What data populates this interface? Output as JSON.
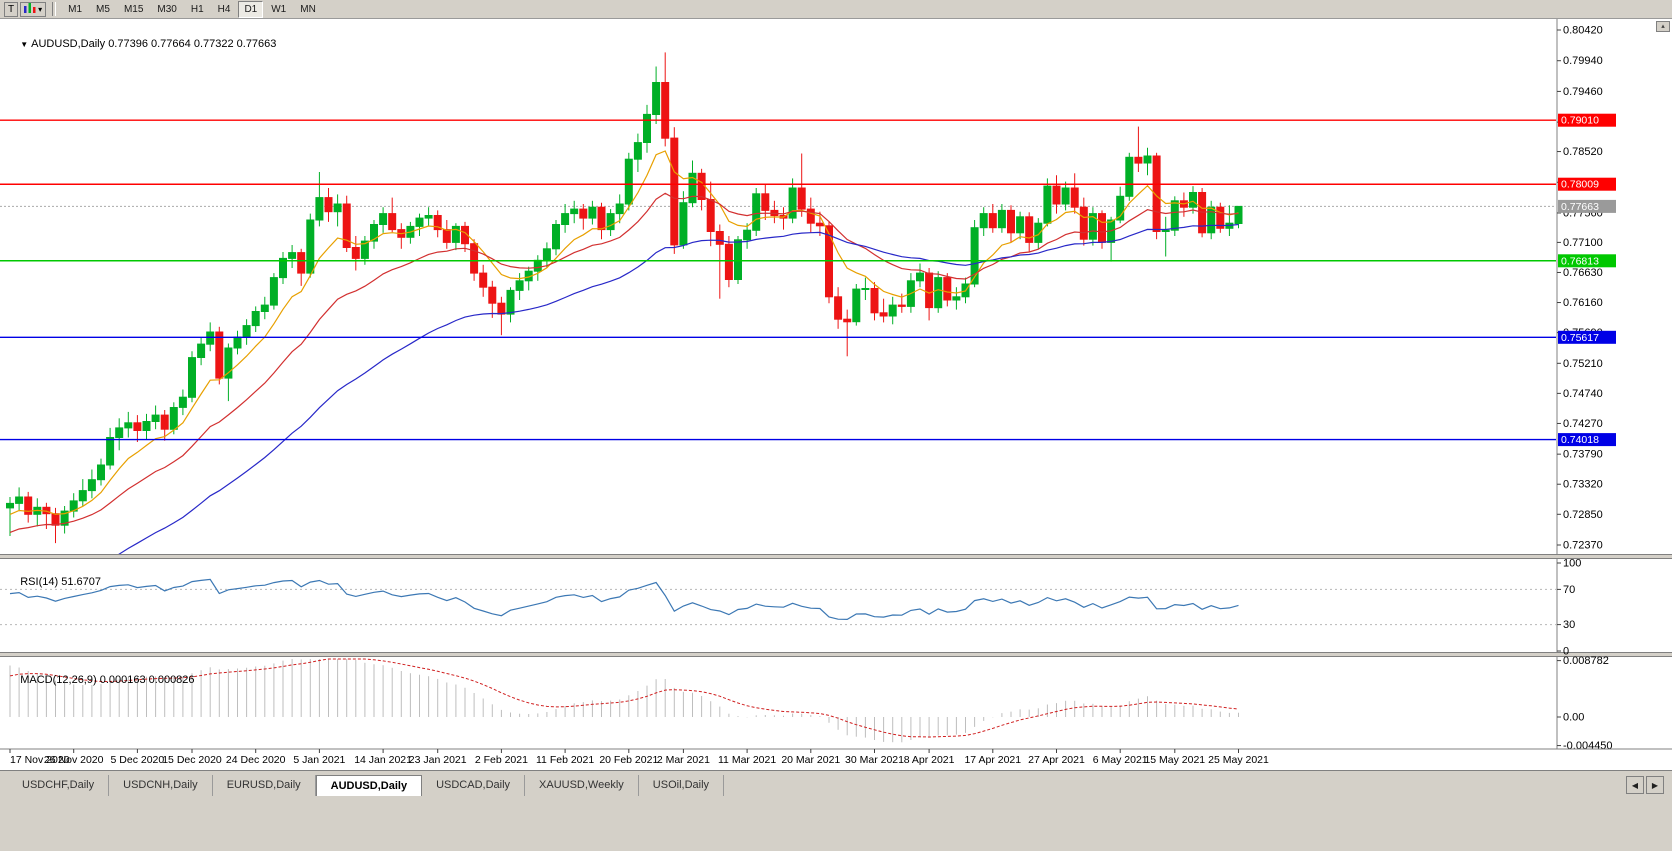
{
  "toolbar": {
    "tool_button": "T",
    "timeframes": [
      "M1",
      "M5",
      "M15",
      "M30",
      "H1",
      "H4",
      "D1",
      "W1",
      "MN"
    ],
    "active_timeframe": "D1"
  },
  "chart_data": {
    "type": "candlestick",
    "symbol_period": "AUDUSD,Daily",
    "ohlc_text": "0.77396 0.77664 0.77322 0.77663",
    "open": "0.77396",
    "high": "0.77664",
    "low": "0.77322",
    "close": "0.77663",
    "price_axis_max": 0.8042,
    "price_axis_min": 0.7237,
    "price_ticks": [
      "0.80420",
      "0.79940",
      "0.79460",
      "0.78980",
      "0.78520",
      "0.78040",
      "0.77560",
      "0.77100",
      "0.76630",
      "0.76160",
      "0.75690",
      "0.75210",
      "0.74740",
      "0.74270",
      "0.73790",
      "0.73320",
      "0.72850",
      "0.72370"
    ],
    "hlines": [
      {
        "price": 0.7901,
        "label": "0.79010",
        "color": "#FF0000"
      },
      {
        "price": 0.78009,
        "label": "0.78009",
        "color": "#FF0000"
      },
      {
        "price": 0.76813,
        "label": "0.76813",
        "color": "#00C800"
      },
      {
        "price": 0.75617,
        "label": "0.75617",
        "color": "#0000E6"
      },
      {
        "price": 0.74018,
        "label": "0.74018",
        "color": "#0000E6"
      }
    ],
    "current_price": {
      "price": 0.77663,
      "label": "0.77663"
    },
    "dates": [
      "17 Nov 2020",
      "26 Nov 2020",
      "5 Dec 2020",
      "15 Dec 2020",
      "24 Dec 2020",
      "5 Jan 2021",
      "14 Jan 2021",
      "23 Jan 2021",
      "2 Feb 2021",
      "11 Feb 2021",
      "20 Feb 2021",
      "2 Mar 2021",
      "11 Mar 2021",
      "20 Mar 2021",
      "30 Mar 2021",
      "8 Apr 2021",
      "17 Apr 2021",
      "27 Apr 2021",
      "6 May 2021",
      "15 May 2021",
      "25 May 2021"
    ],
    "indicators": {
      "rsi": {
        "name": "RSI(14)",
        "value": "51.6707",
        "axis_labels": [
          "100",
          "70",
          "30",
          "0"
        ],
        "dashed_levels": [
          70,
          30
        ]
      },
      "macd": {
        "name": "MACD(12,26,9)",
        "values": "0.000163 0.000826",
        "axis_labels": [
          "0.008782",
          "0.00",
          "-0.004450"
        ]
      }
    },
    "candles": [
      [
        0.7295,
        0.7312,
        0.7251,
        0.7302
      ],
      [
        0.7302,
        0.7327,
        0.729,
        0.7312
      ],
      [
        0.7312,
        0.732,
        0.7272,
        0.7285
      ],
      [
        0.7285,
        0.731,
        0.7266,
        0.7296
      ],
      [
        0.7296,
        0.7303,
        0.7262,
        0.7286
      ],
      [
        0.7286,
        0.7295,
        0.724,
        0.7268
      ],
      [
        0.7268,
        0.7298,
        0.7255,
        0.729
      ],
      [
        0.729,
        0.7318,
        0.728,
        0.7306
      ],
      [
        0.7306,
        0.734,
        0.7298,
        0.7322
      ],
      [
        0.7322,
        0.7355,
        0.731,
        0.7339
      ],
      [
        0.7339,
        0.7372,
        0.733,
        0.7362
      ],
      [
        0.7362,
        0.742,
        0.7355,
        0.7405
      ],
      [
        0.7405,
        0.7435,
        0.7385,
        0.742
      ],
      [
        0.742,
        0.7445,
        0.7405,
        0.7428
      ],
      [
        0.7428,
        0.744,
        0.7398,
        0.7416
      ],
      [
        0.7416,
        0.7442,
        0.7402,
        0.743
      ],
      [
        0.743,
        0.7455,
        0.7418,
        0.744
      ],
      [
        0.744,
        0.7448,
        0.74,
        0.7418
      ],
      [
        0.7418,
        0.746,
        0.741,
        0.7452
      ],
      [
        0.7452,
        0.748,
        0.744,
        0.7468
      ],
      [
        0.7468,
        0.754,
        0.746,
        0.753
      ],
      [
        0.753,
        0.7562,
        0.7518,
        0.7551
      ],
      [
        0.7551,
        0.7585,
        0.754,
        0.757
      ],
      [
        0.757,
        0.7578,
        0.7488,
        0.7498
      ],
      [
        0.7498,
        0.7552,
        0.7462,
        0.7545
      ],
      [
        0.7545,
        0.7572,
        0.7535,
        0.7562
      ],
      [
        0.7562,
        0.759,
        0.755,
        0.758
      ],
      [
        0.758,
        0.761,
        0.757,
        0.7602
      ],
      [
        0.7602,
        0.7625,
        0.759,
        0.7612
      ],
      [
        0.7612,
        0.7662,
        0.7605,
        0.7655
      ],
      [
        0.7655,
        0.7695,
        0.7645,
        0.7685
      ],
      [
        0.7685,
        0.7706,
        0.767,
        0.7694
      ],
      [
        0.7694,
        0.77,
        0.7642,
        0.7662
      ],
      [
        0.7662,
        0.7755,
        0.7655,
        0.7745
      ],
      [
        0.7745,
        0.782,
        0.7735,
        0.778
      ],
      [
        0.778,
        0.7795,
        0.7742,
        0.7758
      ],
      [
        0.7758,
        0.7785,
        0.7735,
        0.777
      ],
      [
        0.777,
        0.7783,
        0.7695,
        0.7702
      ],
      [
        0.7702,
        0.772,
        0.7666,
        0.7685
      ],
      [
        0.7685,
        0.772,
        0.7675,
        0.7712
      ],
      [
        0.7712,
        0.7745,
        0.77,
        0.7738
      ],
      [
        0.7738,
        0.7765,
        0.7725,
        0.7755
      ],
      [
        0.7755,
        0.778,
        0.7726,
        0.773
      ],
      [
        0.773,
        0.774,
        0.77,
        0.7718
      ],
      [
        0.7718,
        0.7742,
        0.7708,
        0.7735
      ],
      [
        0.7735,
        0.7755,
        0.772,
        0.7748
      ],
      [
        0.7748,
        0.7765,
        0.7735,
        0.7752
      ],
      [
        0.7752,
        0.776,
        0.7718,
        0.773
      ],
      [
        0.773,
        0.7745,
        0.77,
        0.771
      ],
      [
        0.771,
        0.774,
        0.7698,
        0.7735
      ],
      [
        0.7735,
        0.7742,
        0.7695,
        0.7708
      ],
      [
        0.7708,
        0.7715,
        0.765,
        0.7662
      ],
      [
        0.7662,
        0.7675,
        0.7625,
        0.764
      ],
      [
        0.764,
        0.765,
        0.7592,
        0.7615
      ],
      [
        0.7615,
        0.7625,
        0.7565,
        0.7598
      ],
      [
        0.7598,
        0.764,
        0.7585,
        0.7635
      ],
      [
        0.7635,
        0.7662,
        0.762,
        0.765
      ],
      [
        0.765,
        0.7672,
        0.7635,
        0.7665
      ],
      [
        0.7665,
        0.769,
        0.765,
        0.7682
      ],
      [
        0.7682,
        0.771,
        0.767,
        0.77
      ],
      [
        0.77,
        0.7745,
        0.769,
        0.7738
      ],
      [
        0.7738,
        0.777,
        0.7725,
        0.7755
      ],
      [
        0.7755,
        0.7775,
        0.774,
        0.7762
      ],
      [
        0.7762,
        0.777,
        0.773,
        0.7748
      ],
      [
        0.7748,
        0.7775,
        0.7738,
        0.7765
      ],
      [
        0.7765,
        0.7772,
        0.7715,
        0.773
      ],
      [
        0.773,
        0.7762,
        0.772,
        0.7755
      ],
      [
        0.7755,
        0.7785,
        0.774,
        0.777
      ],
      [
        0.777,
        0.785,
        0.776,
        0.784
      ],
      [
        0.784,
        0.788,
        0.782,
        0.7866
      ],
      [
        0.7866,
        0.7925,
        0.785,
        0.791
      ],
      [
        0.791,
        0.7985,
        0.7895,
        0.796
      ],
      [
        0.796,
        0.8007,
        0.786,
        0.7873
      ],
      [
        0.7873,
        0.789,
        0.7692,
        0.7706
      ],
      [
        0.7706,
        0.779,
        0.77,
        0.7772
      ],
      [
        0.7772,
        0.7838,
        0.7765,
        0.7818
      ],
      [
        0.7818,
        0.7825,
        0.776,
        0.7777
      ],
      [
        0.7777,
        0.7805,
        0.7704,
        0.7727
      ],
      [
        0.7727,
        0.7738,
        0.7622,
        0.7707
      ],
      [
        0.7707,
        0.772,
        0.764,
        0.7652
      ],
      [
        0.7652,
        0.772,
        0.7645,
        0.7714
      ],
      [
        0.7714,
        0.774,
        0.77,
        0.7729
      ],
      [
        0.7729,
        0.7795,
        0.772,
        0.7786
      ],
      [
        0.7786,
        0.78,
        0.7745,
        0.776
      ],
      [
        0.776,
        0.7775,
        0.774,
        0.7752
      ],
      [
        0.7752,
        0.7765,
        0.773,
        0.7748
      ],
      [
        0.7748,
        0.781,
        0.774,
        0.7795
      ],
      [
        0.7795,
        0.7849,
        0.775,
        0.7762
      ],
      [
        0.7762,
        0.778,
        0.7725,
        0.774
      ],
      [
        0.774,
        0.7758,
        0.772,
        0.7736
      ],
      [
        0.7736,
        0.7742,
        0.7615,
        0.7625
      ],
      [
        0.7625,
        0.764,
        0.7575,
        0.759
      ],
      [
        0.759,
        0.7605,
        0.7532,
        0.7586
      ],
      [
        0.7586,
        0.7645,
        0.758,
        0.7637
      ],
      [
        0.7637,
        0.7655,
        0.762,
        0.7638
      ],
      [
        0.7638,
        0.7648,
        0.7588,
        0.76
      ],
      [
        0.76,
        0.7622,
        0.7585,
        0.7595
      ],
      [
        0.7595,
        0.7625,
        0.7582,
        0.7612
      ],
      [
        0.7612,
        0.763,
        0.76,
        0.761
      ],
      [
        0.761,
        0.7662,
        0.76,
        0.765
      ],
      [
        0.765,
        0.7677,
        0.764,
        0.7662
      ],
      [
        0.7662,
        0.767,
        0.7588,
        0.7608
      ],
      [
        0.7608,
        0.7665,
        0.76,
        0.7655
      ],
      [
        0.7655,
        0.7662,
        0.761,
        0.762
      ],
      [
        0.762,
        0.764,
        0.7605,
        0.7625
      ],
      [
        0.7625,
        0.7655,
        0.7615,
        0.7645
      ],
      [
        0.7645,
        0.7745,
        0.764,
        0.7733
      ],
      [
        0.7733,
        0.7765,
        0.772,
        0.7755
      ],
      [
        0.7755,
        0.777,
        0.7725,
        0.7733
      ],
      [
        0.7733,
        0.777,
        0.7725,
        0.776
      ],
      [
        0.776,
        0.7768,
        0.771,
        0.7725
      ],
      [
        0.7725,
        0.7758,
        0.7715,
        0.775
      ],
      [
        0.775,
        0.7757,
        0.7695,
        0.771
      ],
      [
        0.771,
        0.7748,
        0.77,
        0.774
      ],
      [
        0.774,
        0.781,
        0.7735,
        0.7798
      ],
      [
        0.7798,
        0.7815,
        0.7755,
        0.777
      ],
      [
        0.777,
        0.7805,
        0.776,
        0.7795
      ],
      [
        0.7795,
        0.7818,
        0.7755,
        0.7765
      ],
      [
        0.7765,
        0.778,
        0.7705,
        0.7715
      ],
      [
        0.7715,
        0.7765,
        0.7705,
        0.7755
      ],
      [
        0.7755,
        0.776,
        0.77,
        0.771
      ],
      [
        0.771,
        0.775,
        0.768,
        0.7745
      ],
      [
        0.7745,
        0.7797,
        0.774,
        0.7782
      ],
      [
        0.7782,
        0.785,
        0.7775,
        0.7843
      ],
      [
        0.7843,
        0.7891,
        0.782,
        0.7834
      ],
      [
        0.7834,
        0.7858,
        0.7815,
        0.7845
      ],
      [
        0.7845,
        0.785,
        0.7715,
        0.7727
      ],
      [
        0.7727,
        0.775,
        0.7688,
        0.7729
      ],
      [
        0.7729,
        0.7782,
        0.772,
        0.7775
      ],
      [
        0.7775,
        0.7788,
        0.775,
        0.7765
      ],
      [
        0.7765,
        0.7798,
        0.7755,
        0.7788
      ],
      [
        0.7788,
        0.7795,
        0.7718,
        0.7725
      ],
      [
        0.7725,
        0.7775,
        0.7715,
        0.7765
      ],
      [
        0.7765,
        0.7772,
        0.7725,
        0.7732
      ],
      [
        0.7732,
        0.7768,
        0.772,
        0.774
      ],
      [
        0.77396,
        0.77664,
        0.77322,
        0.77663
      ]
    ]
  },
  "tabs": {
    "items": [
      "USDCHF,Daily",
      "USDCNH,Daily",
      "EURUSD,Daily",
      "AUDUSD,Daily",
      "USDCAD,Daily",
      "XAUUSD,Weekly",
      "USOil,Daily"
    ],
    "active": "AUDUSD,Daily"
  },
  "colors": {
    "bull": "#00AF26",
    "bear": "#ED1414",
    "ma_fast": "#E8A000",
    "ma_mid": "#D23030",
    "ma_slow": "#2828C8",
    "rsi": "#3C78B4",
    "macd_hist": "#BEBEBE",
    "macd_signal": "#D02020",
    "current_badge": "#9A9A9A",
    "current_line": "#AAAAAA"
  }
}
